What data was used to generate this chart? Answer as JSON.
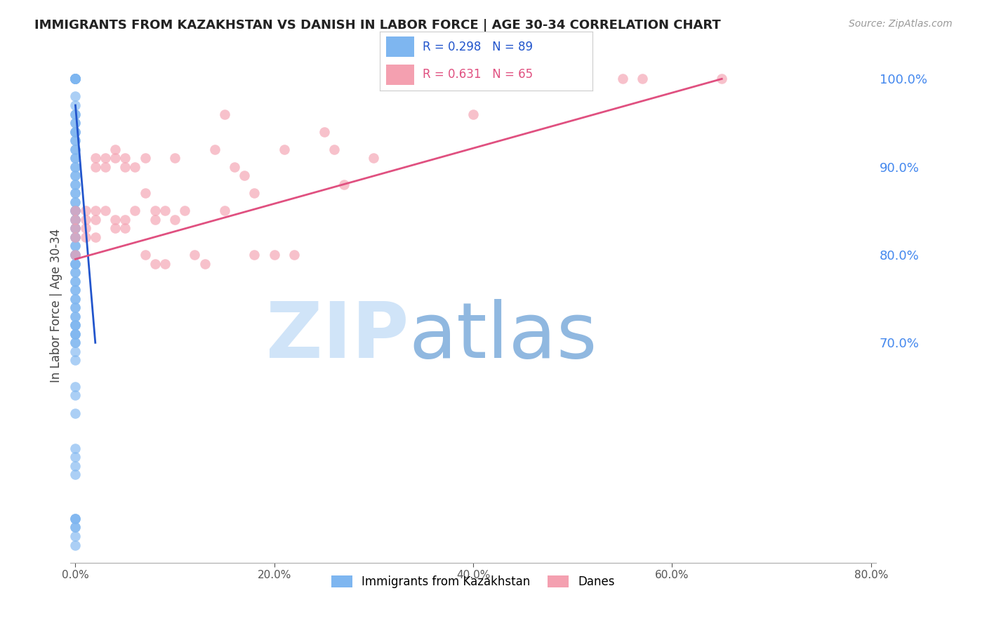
{
  "title": "IMMIGRANTS FROM KAZAKHSTAN VS DANISH IN LABOR FORCE | AGE 30-34 CORRELATION CHART",
  "source": "Source: ZipAtlas.com",
  "ylabel": "In Labor Force | Age 30-34",
  "right_yticks": [
    0.7,
    0.8,
    0.9,
    1.0
  ],
  "right_yticklabels": [
    "70.0%",
    "80.0%",
    "90.0%",
    "100.0%"
  ],
  "blue_R": 0.298,
  "blue_N": 89,
  "pink_R": 0.631,
  "pink_N": 65,
  "blue_color": "#7EB6F0",
  "pink_color": "#F4A0B0",
  "blue_line_color": "#2255CC",
  "pink_line_color": "#E05080",
  "legend_blue_label": "Immigrants from Kazakhstan",
  "legend_pink_label": "Danes",
  "blue_scatter_x": [
    0.0,
    0.0,
    0.0,
    0.0,
    0.0,
    0.0,
    0.0,
    0.0,
    0.0,
    0.0,
    0.0,
    0.0,
    0.0,
    0.0,
    0.0,
    0.0,
    0.0,
    0.0,
    0.0,
    0.0,
    0.0,
    0.0,
    0.0,
    0.0,
    0.0,
    0.0,
    0.0,
    0.0,
    0.0,
    0.0,
    0.0,
    0.0,
    0.0,
    0.0,
    0.0,
    0.0,
    0.0,
    0.0,
    0.0,
    0.0,
    0.0,
    0.0,
    0.0,
    0.0,
    0.0,
    0.0,
    0.0,
    0.0,
    0.0,
    0.0,
    0.0,
    0.0,
    0.0,
    0.0,
    0.0,
    0.0,
    0.0,
    0.0,
    0.0,
    0.0,
    0.0,
    0.0,
    0.0,
    0.0,
    0.0,
    0.0,
    0.0,
    0.0,
    0.0,
    0.0,
    0.0,
    0.0,
    0.0,
    0.0,
    0.0,
    0.0,
    0.0,
    0.0,
    0.0,
    0.0,
    0.0,
    0.0,
    0.0,
    0.0,
    0.0,
    0.0,
    0.0,
    0.0,
    0.0
  ],
  "blue_scatter_y": [
    1.0,
    1.0,
    1.0,
    1.0,
    1.0,
    1.0,
    1.0,
    1.0,
    1.0,
    1.0,
    1.0,
    0.98,
    0.97,
    0.96,
    0.96,
    0.95,
    0.95,
    0.94,
    0.94,
    0.94,
    0.93,
    0.93,
    0.92,
    0.92,
    0.91,
    0.91,
    0.9,
    0.9,
    0.89,
    0.89,
    0.88,
    0.88,
    0.87,
    0.87,
    0.86,
    0.86,
    0.85,
    0.85,
    0.85,
    0.84,
    0.84,
    0.83,
    0.83,
    0.82,
    0.82,
    0.81,
    0.81,
    0.8,
    0.8,
    0.8,
    0.79,
    0.79,
    0.79,
    0.78,
    0.78,
    0.77,
    0.77,
    0.76,
    0.76,
    0.75,
    0.75,
    0.74,
    0.74,
    0.73,
    0.73,
    0.72,
    0.72,
    0.71,
    0.71,
    0.7,
    0.7,
    0.69,
    0.72,
    0.71,
    0.68,
    0.65,
    0.64,
    0.62,
    0.58,
    0.57,
    0.56,
    0.55,
    0.5,
    0.5,
    0.5,
    0.49,
    0.49,
    0.48,
    0.47
  ],
  "pink_scatter_x": [
    0.0,
    0.0,
    0.0,
    0.0,
    0.0,
    0.01,
    0.01,
    0.01,
    0.01,
    0.02,
    0.02,
    0.02,
    0.02,
    0.02,
    0.03,
    0.03,
    0.03,
    0.04,
    0.04,
    0.04,
    0.04,
    0.05,
    0.05,
    0.05,
    0.05,
    0.06,
    0.06,
    0.07,
    0.07,
    0.07,
    0.08,
    0.08,
    0.08,
    0.09,
    0.09,
    0.1,
    0.1,
    0.11,
    0.12,
    0.13,
    0.14,
    0.15,
    0.15,
    0.16,
    0.17,
    0.18,
    0.18,
    0.2,
    0.21,
    0.22,
    0.25,
    0.26,
    0.27,
    0.3,
    0.32,
    0.35,
    0.38,
    0.4,
    0.42,
    0.45,
    0.47,
    0.5,
    0.55,
    0.57,
    0.65
  ],
  "pink_scatter_y": [
    0.85,
    0.84,
    0.83,
    0.82,
    0.8,
    0.85,
    0.84,
    0.83,
    0.82,
    0.91,
    0.9,
    0.85,
    0.84,
    0.82,
    0.91,
    0.9,
    0.85,
    0.92,
    0.91,
    0.84,
    0.83,
    0.91,
    0.9,
    0.84,
    0.83,
    0.9,
    0.85,
    0.91,
    0.87,
    0.8,
    0.85,
    0.84,
    0.79,
    0.85,
    0.79,
    0.91,
    0.84,
    0.85,
    0.8,
    0.79,
    0.92,
    0.96,
    0.85,
    0.9,
    0.89,
    0.87,
    0.8,
    0.8,
    0.92,
    0.8,
    0.94,
    0.92,
    0.88,
    0.91,
    1.0,
    1.0,
    1.0,
    0.96,
    1.0,
    1.0,
    1.0,
    1.0,
    1.0,
    1.0,
    1.0
  ],
  "blue_line_x0": 0.0,
  "blue_line_x1": 0.02,
  "blue_line_y0": 0.97,
  "blue_line_y1": 0.7,
  "pink_line_x0": 0.0,
  "pink_line_x1": 0.65,
  "pink_line_y0": 0.795,
  "pink_line_y1": 1.0,
  "xlim": [
    -0.005,
    0.805
  ],
  "ylim": [
    0.45,
    1.035
  ],
  "background_color": "#ffffff",
  "grid_color": "#cccccc",
  "right_tick_color": "#4488ee",
  "watermark_color_ZIP": "#d0e4f8",
  "watermark_color_atlas": "#90b8e0"
}
